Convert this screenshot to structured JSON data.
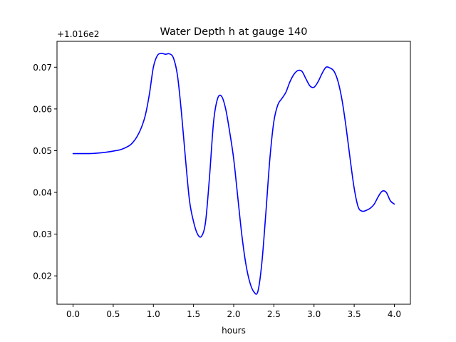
{
  "chart_data": {
    "type": "line",
    "title": "Water Depth h at gauge 140",
    "xlabel": "hours",
    "ylabel": "",
    "offset_label": "+1.016e2",
    "xlim": [
      -0.2,
      4.2
    ],
    "ylim": [
      0.0132,
      0.0762
    ],
    "x_ticks": [
      0.0,
      0.5,
      1.0,
      1.5,
      2.0,
      2.5,
      3.0,
      3.5,
      4.0
    ],
    "x_tick_labels": [
      "0.0",
      "0.5",
      "1.0",
      "1.5",
      "2.0",
      "2.5",
      "3.0",
      "3.5",
      "4.0"
    ],
    "y_ticks": [
      0.02,
      0.03,
      0.04,
      0.05,
      0.06,
      0.07
    ],
    "y_tick_labels": [
      "0.02",
      "0.03",
      "0.04",
      "0.05",
      "0.06",
      "0.07"
    ],
    "grid": false,
    "line_color": "#0000ff",
    "series": [
      {
        "x": [
          0.0,
          0.1,
          0.2,
          0.3,
          0.4,
          0.5,
          0.6,
          0.7,
          0.75,
          0.8,
          0.85,
          0.9,
          0.95,
          1.0,
          1.05,
          1.1,
          1.15,
          1.2,
          1.25,
          1.3,
          1.35,
          1.4,
          1.45,
          1.5,
          1.55,
          1.6,
          1.65,
          1.7,
          1.75,
          1.8,
          1.85,
          1.9,
          1.95,
          2.0,
          2.05,
          2.1,
          2.15,
          2.2,
          2.25,
          2.3,
          2.35,
          2.4,
          2.45,
          2.5,
          2.55,
          2.6,
          2.65,
          2.7,
          2.75,
          2.8,
          2.85,
          2.9,
          2.95,
          3.0,
          3.05,
          3.1,
          3.15,
          3.2,
          3.25,
          3.3,
          3.35,
          3.4,
          3.45,
          3.5,
          3.55,
          3.6,
          3.65,
          3.7,
          3.75,
          3.8,
          3.85,
          3.9,
          3.95,
          4.0
        ],
        "values": [
          0.0493,
          0.0493,
          0.0493,
          0.0494,
          0.0496,
          0.0499,
          0.0503,
          0.0512,
          0.0521,
          0.0535,
          0.0555,
          0.0585,
          0.0635,
          0.07,
          0.0728,
          0.0733,
          0.0731,
          0.0732,
          0.0722,
          0.068,
          0.059,
          0.048,
          0.038,
          0.033,
          0.03,
          0.0295,
          0.033,
          0.044,
          0.057,
          0.0625,
          0.063,
          0.06,
          0.0545,
          0.048,
          0.039,
          0.03,
          0.023,
          0.0185,
          0.0162,
          0.0162,
          0.023,
          0.035,
          0.048,
          0.057,
          0.061,
          0.0625,
          0.064,
          0.0665,
          0.0683,
          0.0692,
          0.069,
          0.0672,
          0.0655,
          0.0652,
          0.0665,
          0.0685,
          0.07,
          0.0698,
          0.069,
          0.0665,
          0.062,
          0.0555,
          0.048,
          0.041,
          0.0365,
          0.0355,
          0.0357,
          0.0362,
          0.0372,
          0.039,
          0.0403,
          0.04,
          0.038,
          0.0372
        ]
      }
    ]
  }
}
